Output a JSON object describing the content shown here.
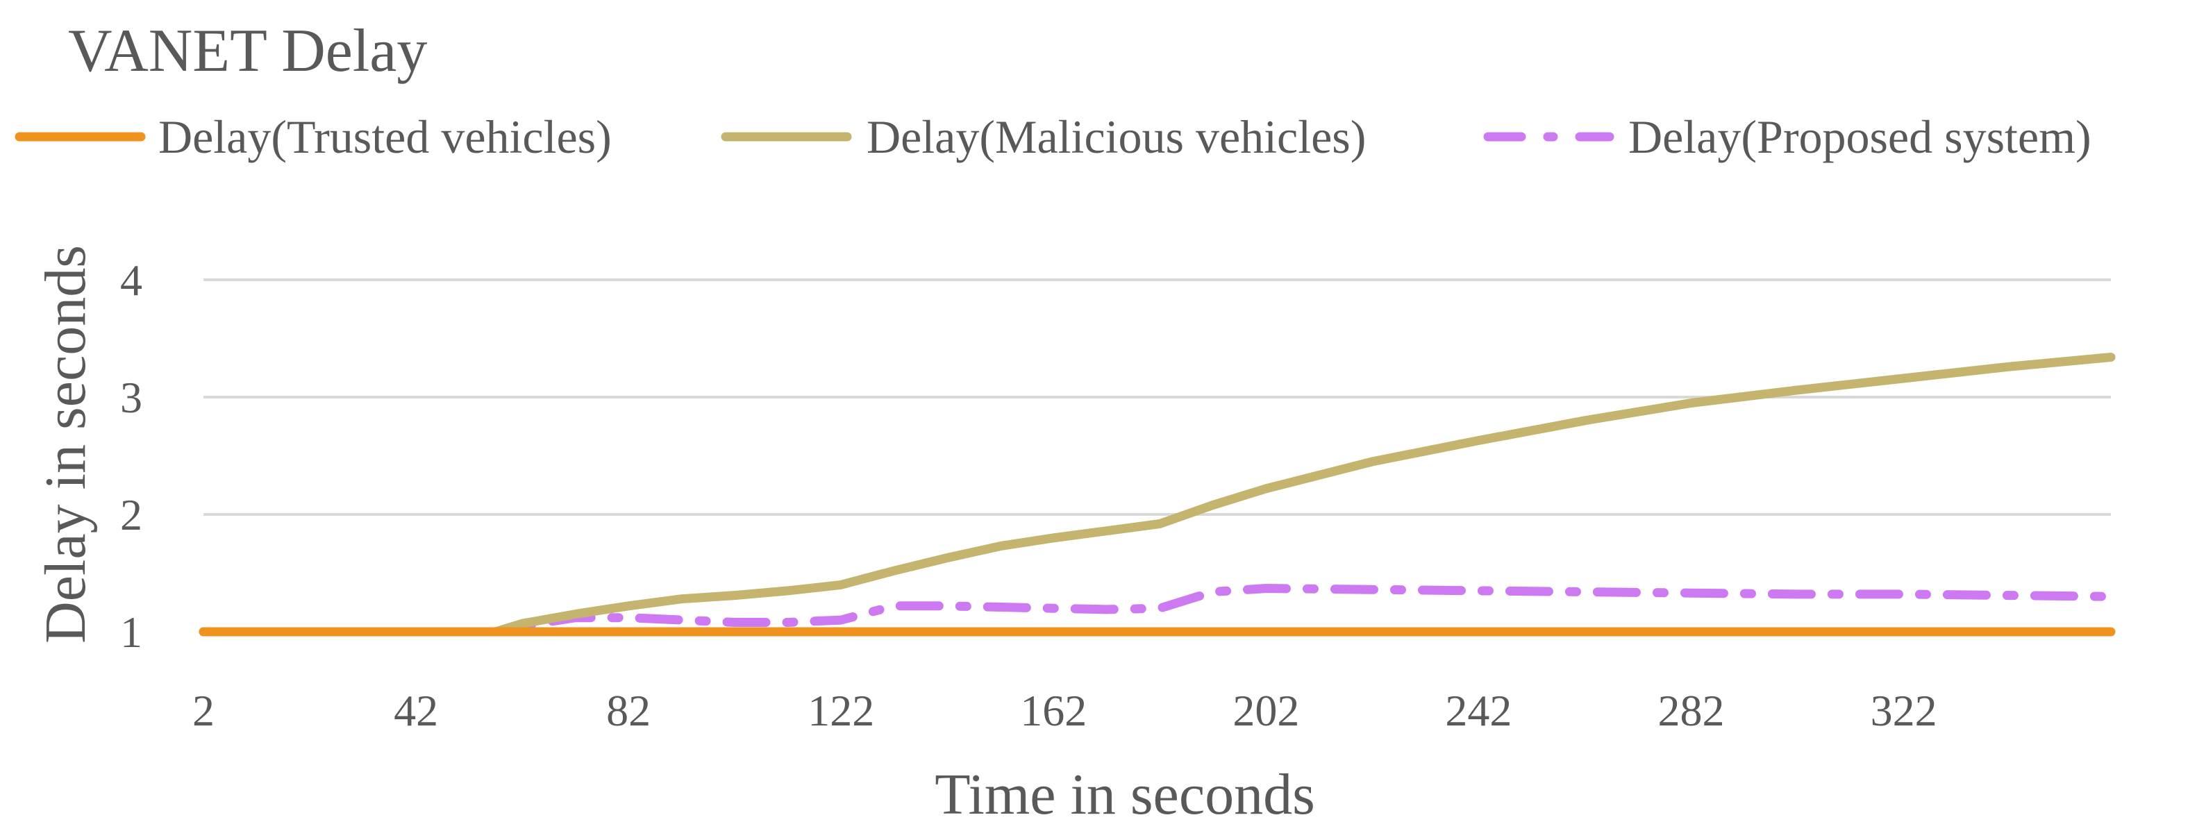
{
  "chart_data": {
    "type": "line",
    "title": "VANET Delay",
    "xlabel": "Time in seconds",
    "ylabel": "Delay in seconds",
    "x_ticks": [
      "2",
      "42",
      "82",
      "122",
      "162",
      "202",
      "242",
      "282",
      "322"
    ],
    "y_ticks": [
      "1",
      "2",
      "3",
      "4"
    ],
    "xlim": [
      2,
      361
    ],
    "ylim": [
      1,
      4
    ],
    "grid": true,
    "legend_position": "top",
    "x": [
      2,
      42,
      57,
      62,
      72,
      82,
      92,
      102,
      112,
      122,
      132,
      142,
      152,
      162,
      172,
      182,
      192,
      202,
      222,
      242,
      262,
      282,
      302,
      322,
      342,
      361
    ],
    "series": [
      {
        "name": "Delay(Trusted vehicles)",
        "color": "#F0921E",
        "dash": "solid",
        "values": [
          1,
          1,
          1,
          1,
          1,
          1,
          1,
          1,
          1,
          1,
          1,
          1,
          1,
          1,
          1,
          1,
          1,
          1,
          1,
          1,
          1,
          1,
          1,
          1,
          1,
          1
        ]
      },
      {
        "name": "Delay(Malicious vehicles)",
        "color": "#C5B46E",
        "dash": "solid",
        "values": [
          1.0,
          1.0,
          1.0,
          1.07,
          1.15,
          1.22,
          1.28,
          1.31,
          1.35,
          1.4,
          1.52,
          1.63,
          1.73,
          1.8,
          1.86,
          1.92,
          2.08,
          2.22,
          2.45,
          2.63,
          2.8,
          2.95,
          3.06,
          3.16,
          3.26,
          3.34
        ]
      },
      {
        "name": "Delay(Proposed system)",
        "color": "#CC79F2",
        "dash": "dashdot",
        "values": [
          1.0,
          1.0,
          1.0,
          1.05,
          1.12,
          1.12,
          1.1,
          1.08,
          1.08,
          1.1,
          1.22,
          1.22,
          1.21,
          1.2,
          1.19,
          1.2,
          1.34,
          1.37,
          1.36,
          1.35,
          1.34,
          1.33,
          1.32,
          1.32,
          1.31,
          1.3
        ]
      }
    ]
  }
}
